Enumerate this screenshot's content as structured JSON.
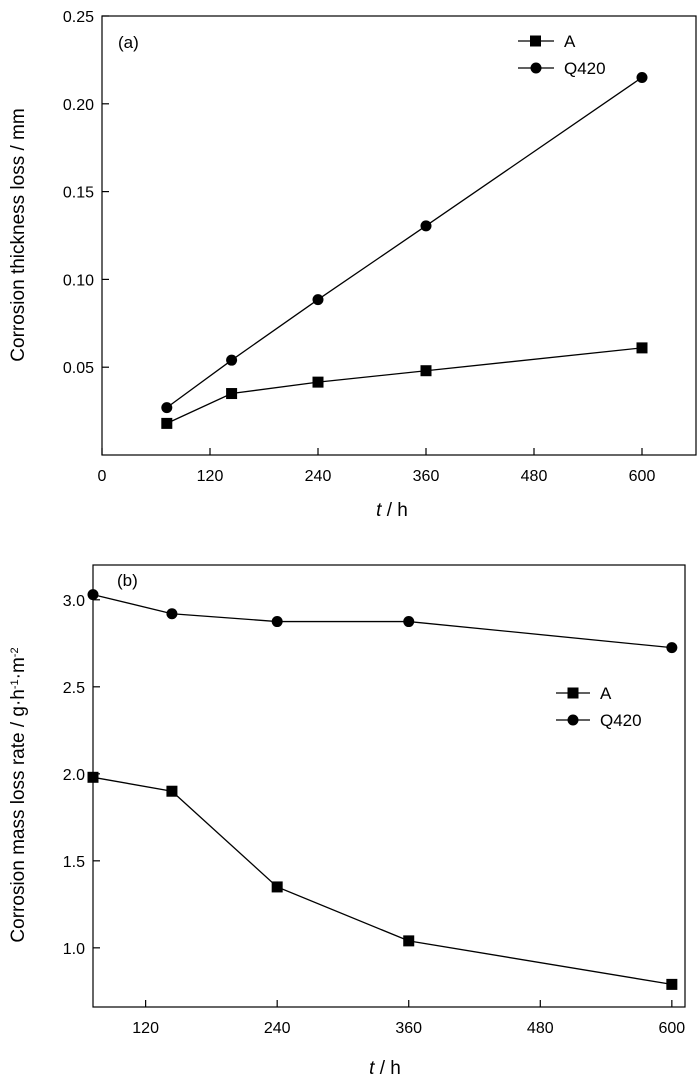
{
  "chart_data": [
    {
      "type": "line",
      "panel_label": "(a)",
      "xlabel_var": "t",
      "xlabel_unit": " / h",
      "ylabel": "Corrosion thickness loss / mm",
      "xlim": [
        0,
        660
      ],
      "ylim": [
        0.0,
        0.25
      ],
      "xticks": [
        0,
        120,
        240,
        360,
        480,
        600
      ],
      "yticks": [
        0.05,
        0.1,
        0.15,
        0.2,
        0.25
      ],
      "ytick_labels": [
        "0.05",
        "0.10",
        "0.15",
        "0.20",
        "0.25"
      ],
      "legend_position": "top-right",
      "grid": false,
      "series": [
        {
          "name": "A",
          "marker": "square",
          "x": [
            72,
            144,
            240,
            360,
            600
          ],
          "y": [
            0.018,
            0.035,
            0.0415,
            0.048,
            0.061
          ]
        },
        {
          "name": "Q420",
          "marker": "circle",
          "x": [
            72,
            144,
            240,
            360,
            600
          ],
          "y": [
            0.027,
            0.054,
            0.0885,
            0.1305,
            0.215
          ]
        }
      ]
    },
    {
      "type": "line",
      "panel_label": "(b)",
      "xlabel_var": "t",
      "xlabel_unit": " / h",
      "ylabel": "Corrosion mass loss rate / g·h·m",
      "ylabel_sup1": "-1",
      "ylabel_sup2": "-2",
      "xlim": [
        72,
        612
      ],
      "ylim": [
        0.66,
        3.2
      ],
      "xticks": [
        120,
        240,
        360,
        480,
        600
      ],
      "yticks": [
        1.0,
        1.5,
        2.0,
        2.5,
        3.0
      ],
      "ytick_labels": [
        "1.0",
        "1.5",
        "2.0",
        "2.5",
        "3.0"
      ],
      "legend_position": "center-right",
      "grid": false,
      "series": [
        {
          "name": "A",
          "marker": "square",
          "x": [
            72,
            144,
            240,
            360,
            600
          ],
          "y": [
            1.98,
            1.9,
            1.35,
            1.04,
            0.79
          ]
        },
        {
          "name": "Q420",
          "marker": "circle",
          "x": [
            72,
            144,
            240,
            360,
            600
          ],
          "y": [
            3.03,
            2.92,
            2.875,
            2.875,
            2.725
          ]
        }
      ]
    }
  ]
}
